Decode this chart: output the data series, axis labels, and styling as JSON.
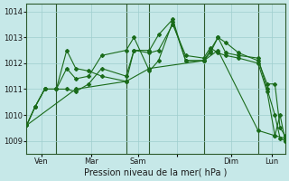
{
  "background_color": "#c6e8e8",
  "grid_color": "#9ecece",
  "line_color": "#1a6b1a",
  "marker_color": "#1a6b1a",
  "vline_color": "#2d5a2d",
  "ylabel": "Pression niveau de la mer( hPa )",
  "ylim": [
    1008.5,
    1014.3
  ],
  "yticks": [
    1009,
    1010,
    1011,
    1012,
    1013,
    1014
  ],
  "xlim": [
    0,
    1.0
  ],
  "vline_positions": [
    0.115,
    0.385,
    0.475,
    0.685,
    0.895
  ],
  "xtick_positions": [
    0.057,
    0.25,
    0.43,
    0.58,
    0.79,
    0.948
  ],
  "xtick_labels": [
    "Ven",
    "Mar",
    "Sam",
    "",
    "Dim",
    "Lun"
  ],
  "series": [
    {
      "x": [
        0.0,
        0.032,
        0.07,
        0.115,
        0.155,
        0.19,
        0.24,
        0.29,
        0.385,
        0.415,
        0.475,
        0.51,
        0.565,
        0.615,
        0.685,
        0.71,
        0.74,
        0.77,
        0.82,
        0.895,
        0.93,
        0.96,
        0.98,
        1.0
      ],
      "y": [
        1009.6,
        1010.3,
        1011.0,
        1011.0,
        1012.5,
        1011.8,
        1011.7,
        1011.5,
        1011.3,
        1012.5,
        1012.5,
        1013.1,
        1013.7,
        1012.1,
        1012.1,
        1012.4,
        1013.0,
        1012.8,
        1012.4,
        1012.1,
        1011.2,
        1011.2,
        1009.5,
        1009.2
      ]
    },
    {
      "x": [
        0.0,
        0.032,
        0.07,
        0.115,
        0.155,
        0.19,
        0.24,
        0.29,
        0.385,
        0.415,
        0.475,
        0.51,
        0.565,
        0.615,
        0.685,
        0.71,
        0.74,
        0.77,
        0.82,
        0.895,
        0.93,
        0.96,
        0.98,
        1.0
      ],
      "y": [
        1009.6,
        1010.3,
        1011.0,
        1011.0,
        1011.8,
        1011.4,
        1011.5,
        1012.3,
        1012.5,
        1013.0,
        1011.7,
        1012.1,
        1013.6,
        1012.1,
        1012.1,
        1012.5,
        1013.0,
        1012.4,
        1012.3,
        1012.2,
        1011.0,
        1010.0,
        1009.1,
        1009.0
      ]
    },
    {
      "x": [
        0.0,
        0.032,
        0.07,
        0.115,
        0.155,
        0.19,
        0.24,
        0.29,
        0.385,
        0.415,
        0.475,
        0.51,
        0.565,
        0.615,
        0.685,
        0.71,
        0.74,
        0.77,
        0.82,
        0.895,
        0.93,
        0.96,
        0.98,
        1.0
      ],
      "y": [
        1009.6,
        1010.3,
        1011.0,
        1011.0,
        1011.0,
        1010.9,
        1011.2,
        1011.8,
        1011.5,
        1012.5,
        1012.4,
        1012.5,
        1013.5,
        1012.3,
        1012.2,
        1012.6,
        1012.4,
        1012.3,
        1012.2,
        1012.0,
        1010.9,
        1009.2,
        1010.0,
        1009.0
      ]
    },
    {
      "x": [
        0.0,
        0.19,
        0.385,
        0.475,
        0.685,
        0.74,
        0.895,
        0.96,
        1.0
      ],
      "y": [
        1009.6,
        1011.0,
        1011.3,
        1011.8,
        1012.1,
        1012.5,
        1009.4,
        1009.2,
        1009.1
      ]
    }
  ],
  "tick_fontsize": 6,
  "axis_fontsize": 7
}
